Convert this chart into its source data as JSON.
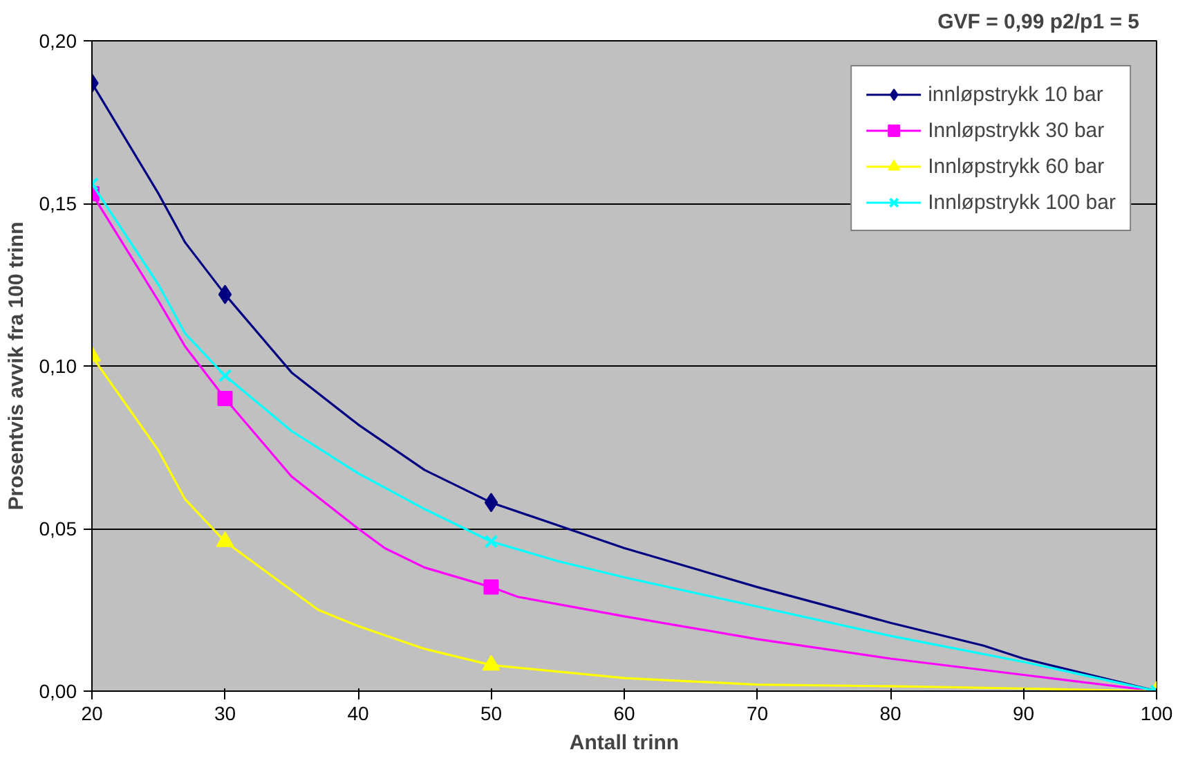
{
  "chart_data": {
    "type": "line",
    "title": "GVF = 0,99    p2/p1 = 5",
    "xlabel": "Antall trinn",
    "ylabel": "Prosentvis avvik fra 100 trinn",
    "series": [
      {
        "name": "innløpstrykk 10 bar",
        "color": "#000080",
        "x": [
          20,
          25,
          27,
          30,
          35,
          40,
          45,
          50,
          55,
          60,
          70,
          80,
          87,
          90,
          100
        ],
        "values": [
          0.187,
          0.153,
          0.138,
          0.122,
          0.098,
          0.082,
          0.068,
          0.058,
          0.051,
          0.044,
          0.032,
          0.021,
          0.014,
          0.01,
          0.0
        ]
      },
      {
        "type": "scatter",
        "color": "#000080",
        "marker": "diamond",
        "x": [
          20,
          30,
          50
        ],
        "values": [
          0.187,
          0.122,
          0.058
        ]
      },
      {
        "name": "Innløpstrykk 30 bar",
        "color": "#ff00ff",
        "x": [
          20,
          25,
          27,
          30,
          35,
          40,
          42,
          45,
          50,
          52,
          60,
          70,
          80,
          90,
          100
        ],
        "values": [
          0.153,
          0.12,
          0.106,
          0.09,
          0.066,
          0.05,
          0.044,
          0.038,
          0.032,
          0.029,
          0.023,
          0.016,
          0.01,
          0.005,
          0.0
        ]
      },
      {
        "type": "scatter",
        "color": "#ff00ff",
        "marker": "square",
        "x": [
          20,
          30,
          50
        ],
        "values": [
          0.153,
          0.09,
          0.032
        ]
      },
      {
        "name": "Innløpstrykk 60 bar",
        "color": "#ffff00",
        "x": [
          20,
          25,
          27,
          30,
          37,
          40,
          45,
          50,
          60,
          70,
          80,
          90,
          100
        ],
        "values": [
          0.103,
          0.074,
          0.059,
          0.046,
          0.025,
          0.02,
          0.013,
          0.008,
          0.004,
          0.002,
          0.0015,
          0.0008,
          0.0
        ]
      },
      {
        "type": "scatter",
        "color": "#ffff00",
        "marker": "triangle",
        "x": [
          20,
          30,
          50,
          100
        ],
        "values": [
          0.103,
          0.046,
          0.008,
          0.0
        ]
      },
      {
        "name": "Innløpstrykk 100 bar",
        "color": "#00ffff",
        "x": [
          20,
          25,
          27,
          30,
          35,
          40,
          45,
          50,
          55,
          60,
          70,
          80,
          90,
          100
        ],
        "values": [
          0.156,
          0.125,
          0.11,
          0.097,
          0.08,
          0.067,
          0.056,
          0.046,
          0.04,
          0.035,
          0.026,
          0.017,
          0.009,
          0.0
        ]
      },
      {
        "type": "scatter",
        "color": "#00ffff",
        "marker": "cross",
        "x": [
          20,
          30,
          50,
          100
        ],
        "values": [
          0.156,
          0.097,
          0.046,
          0.0
        ]
      }
    ],
    "xlim": [
      20,
      100
    ],
    "xticks": [
      20,
      30,
      40,
      50,
      60,
      70,
      80,
      90,
      100
    ],
    "ylim": [
      0,
      0.2
    ],
    "yticks": [
      {
        "value": 0,
        "label": "0,00"
      },
      {
        "value": 0.05,
        "label": "0,05"
      },
      {
        "value": 0.1,
        "label": "0,10"
      },
      {
        "value": 0.15,
        "label": "0,15"
      },
      {
        "value": 0.2,
        "label": "0,20"
      }
    ],
    "grid": "y",
    "legend": "top right",
    "line_style": "solid"
  }
}
